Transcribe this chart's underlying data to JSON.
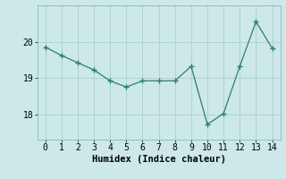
{
  "x": [
    0,
    1,
    2,
    3,
    4,
    5,
    6,
    7,
    8,
    9,
    10,
    11,
    12,
    13,
    14
  ],
  "y": [
    19.85,
    19.62,
    19.42,
    19.22,
    18.92,
    18.75,
    18.92,
    18.92,
    18.92,
    19.32,
    17.72,
    18.02,
    19.32,
    20.55,
    19.82
  ],
  "line_color": "#2e7d6e",
  "marker_color": "#2e7d6e",
  "bg_color": "#cce8e8",
  "grid_color": "#aacfcf",
  "xlabel": "Humidex (Indice chaleur)",
  "ylim": [
    17.3,
    21.0
  ],
  "xlim": [
    -0.5,
    14.5
  ],
  "yticks": [
    18,
    19,
    20
  ],
  "xticks": [
    0,
    1,
    2,
    3,
    4,
    5,
    6,
    7,
    8,
    9,
    10,
    11,
    12,
    13,
    14
  ],
  "xlabel_fontsize": 7.5,
  "tick_fontsize": 7
}
